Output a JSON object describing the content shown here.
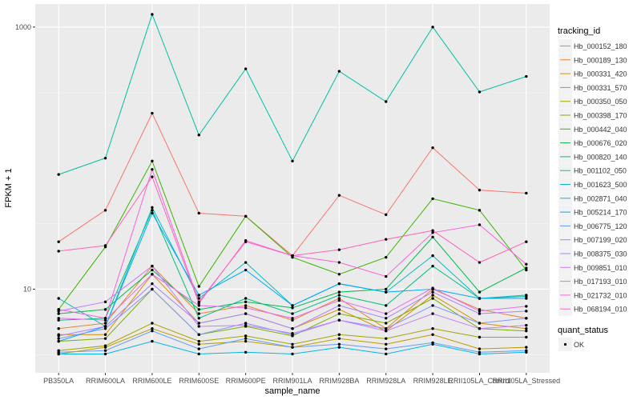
{
  "chart_data": {
    "type": "line",
    "title": "",
    "xlabel": "sample_name",
    "ylabel": "FPKM + 1",
    "y_scale": "log10",
    "ylim": [
      2.3,
      1500
    ],
    "y_ticks": [
      10,
      1000
    ],
    "y_tick_labels": [
      "10",
      "1000"
    ],
    "grid": true,
    "categories": [
      "PB350LA",
      "RRIM600LA",
      "RRIM600LE",
      "RRIM600SE",
      "RRIM600PE",
      "RRIM901LA",
      "RRIM928BA",
      "RRIM928LA",
      "RRIM928LE",
      "RRII105LA_Control",
      "RRII105LA_Stressed"
    ],
    "series": [
      {
        "name": "Hb_000152_180",
        "color": "#F8766D",
        "values": [
          23,
          40,
          220,
          38,
          36,
          18,
          52,
          37,
          120,
          57,
          54
        ]
      },
      {
        "name": "Hb_000189_130",
        "color": "#EA8331",
        "values": [
          5,
          5.5,
          15,
          6.5,
          7.5,
          5.8,
          8.5,
          5,
          10,
          7,
          6
        ]
      },
      {
        "name": "Hb_000331_420",
        "color": "#D89000",
        "values": [
          4.5,
          4.5,
          13,
          5.5,
          6.5,
          5,
          7,
          4.8,
          9,
          5.5,
          5
        ]
      },
      {
        "name": "Hb_000331_570",
        "color": "#C09B00",
        "values": [
          3.2,
          3.6,
          5,
          3.8,
          4,
          3.6,
          4.2,
          3.8,
          4.5,
          3.5,
          3.6
        ]
      },
      {
        "name": "Hb_000350_050",
        "color": "#A3A500",
        "values": [
          3.4,
          3.7,
          5.5,
          4,
          4.4,
          3.8,
          4.5,
          4.2,
          5,
          4.3,
          4.3
        ]
      },
      {
        "name": "Hb_000398_170",
        "color": "#7CAE00",
        "values": [
          4,
          4.2,
          10,
          4.5,
          5.2,
          4.4,
          6.5,
          5.5,
          8.5,
          5,
          4.8
        ]
      },
      {
        "name": "Hb_000442_040",
        "color": "#39B600",
        "values": [
          7,
          21,
          95,
          10.5,
          36,
          17.5,
          13,
          17.5,
          49,
          40,
          14
        ]
      },
      {
        "name": "Hb_000676_020",
        "color": "#00BB4E",
        "values": [
          6.5,
          7,
          14,
          7,
          8,
          7.2,
          9.5,
          10,
          25,
          9.5,
          14.5
        ]
      },
      {
        "name": "Hb_000820_140",
        "color": "#00BF7D",
        "values": [
          5.8,
          6,
          40,
          6,
          8.5,
          6.5,
          9,
          7.5,
          15,
          8.5,
          8.8
        ]
      },
      {
        "name": "Hb_001102_050",
        "color": "#00C1A3",
        "values": [
          75,
          100,
          1250,
          150,
          480,
          95,
          460,
          270,
          1000,
          320,
          420
        ]
      },
      {
        "name": "Hb_001623_500",
        "color": "#00BFC4",
        "values": [
          8.5,
          5.2,
          42,
          8.5,
          16,
          7.5,
          11,
          9.5,
          18,
          8.5,
          9
        ]
      },
      {
        "name": "Hb_002871_040",
        "color": "#00B8E7",
        "values": [
          3.2,
          3.2,
          4,
          3.2,
          3.3,
          3.2,
          3.6,
          3.2,
          3.8,
          3.2,
          3.3
        ]
      },
      {
        "name": "Hb_005214_170",
        "color": "#00A9FF",
        "values": [
          4,
          5.2,
          38,
          9,
          14,
          7.5,
          11,
          9.5,
          10,
          8.5,
          8.5
        ]
      },
      {
        "name": "Hb_006775_120",
        "color": "#619CFF",
        "values": [
          3.3,
          3.4,
          4.8,
          3.5,
          4.2,
          3.6,
          3.8,
          3.5,
          3.9,
          3.3,
          3.4
        ]
      },
      {
        "name": "Hb_007199_020",
        "color": "#8494FF",
        "values": [
          4.2,
          5,
          10,
          4.5,
          5.5,
          4.5,
          5.8,
          5,
          7.5,
          5.5,
          6
        ]
      },
      {
        "name": "Hb_008375_030",
        "color": "#AB82FF",
        "values": [
          4.4,
          5.2,
          11,
          5.5,
          6.5,
          5,
          7.5,
          6,
          9.5,
          6.5,
          6.8
        ]
      },
      {
        "name": "Hb_009851_010",
        "color": "#C77CFF",
        "values": [
          6.8,
          8,
          15,
          5.2,
          5.3,
          4.6,
          5.8,
          4.8,
          6.5,
          5,
          5.3
        ]
      },
      {
        "name": "Hb_017193_010",
        "color": "#E76BF3",
        "values": [
          6,
          5.8,
          13,
          7.5,
          7.2,
          6,
          8.2,
          6.5,
          10.2,
          6.8,
          7.4
        ]
      },
      {
        "name": "Hb_021732_010",
        "color": "#FA62DB",
        "values": [
          7,
          6,
          82,
          8,
          23,
          18,
          16,
          12.5,
          27,
          31,
          15.5
        ]
      },
      {
        "name": "Hb_068194_010",
        "color": "#FF62BC",
        "values": [
          19.5,
          21.5,
          72,
          7.8,
          23.5,
          18,
          20,
          24,
          28,
          16,
          23
        ]
      }
    ],
    "legend": {
      "position": "right",
      "title": "tracking_id",
      "shape_title": "quant_status",
      "shape_label": "OK"
    }
  }
}
